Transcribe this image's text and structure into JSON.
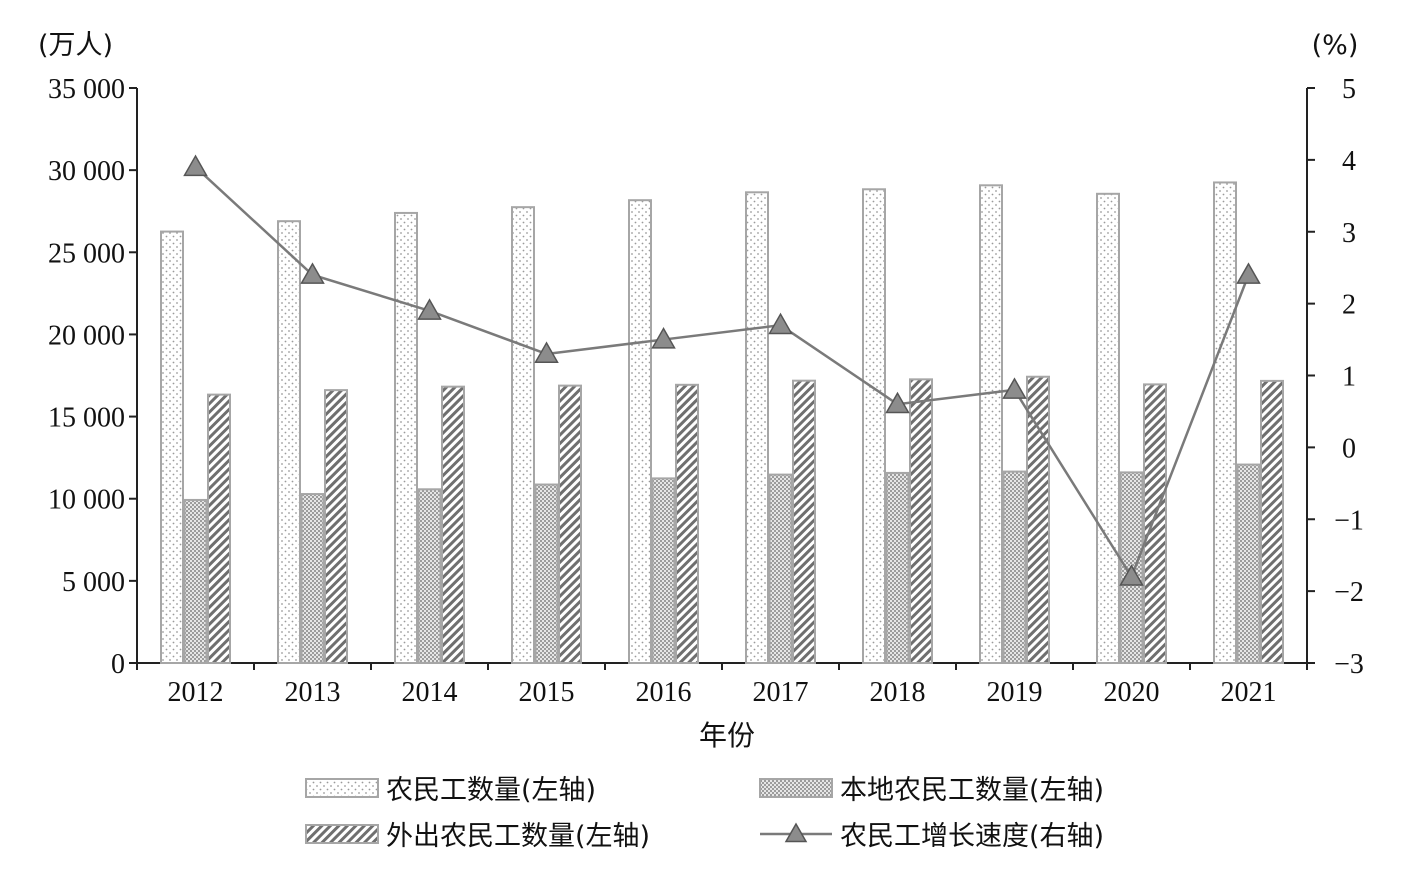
{
  "chart_data": {
    "type": "bar",
    "xlabel": "年份",
    "ylabel_left": "(万人)",
    "ylabel_right": "(%)",
    "categories": [
      "2012",
      "2013",
      "2014",
      "2015",
      "2016",
      "2017",
      "2018",
      "2019",
      "2020",
      "2021"
    ],
    "ylim_left": [
      0,
      35000
    ],
    "ylim_right": [
      -3,
      5
    ],
    "yticks_left": [
      {
        "value": 0,
        "label": "0"
      },
      {
        "value": 5000,
        "label": "5 000"
      },
      {
        "value": 10000,
        "label": "10 000"
      },
      {
        "value": 15000,
        "label": "15 000"
      },
      {
        "value": 20000,
        "label": "20 000"
      },
      {
        "value": 25000,
        "label": "25 000"
      },
      {
        "value": 30000,
        "label": "30 000"
      },
      {
        "value": 35000,
        "label": "35 000"
      }
    ],
    "yticks_right": [
      {
        "value": -3,
        "label": "−3"
      },
      {
        "value": -2,
        "label": "−2"
      },
      {
        "value": -1,
        "label": "−1"
      },
      {
        "value": 0,
        "label": "0"
      },
      {
        "value": 1,
        "label": "1"
      },
      {
        "value": 2,
        "label": "2"
      },
      {
        "value": 3,
        "label": "3"
      },
      {
        "value": 4,
        "label": "4"
      },
      {
        "value": 5,
        "label": "5"
      }
    ],
    "series": [
      {
        "name": "农民工数量(左轴)",
        "kind": "bar",
        "axis": "left",
        "pattern": "dots",
        "values": [
          26261,
          26894,
          27395,
          27747,
          28171,
          28652,
          28836,
          29077,
          28560,
          29251
        ]
      },
      {
        "name": "本地农民工数量(左轴)",
        "kind": "bar",
        "axis": "left",
        "pattern": "crosshatch",
        "values": [
          9925,
          10284,
          10574,
          10863,
          11237,
          11467,
          11570,
          11652,
          11601,
          12079
        ]
      },
      {
        "name": "外出农民工数量(左轴)",
        "kind": "bar",
        "axis": "left",
        "pattern": "diagonal",
        "values": [
          16336,
          16610,
          16821,
          16884,
          16934,
          17185,
          17266,
          17425,
          16959,
          17172
        ]
      },
      {
        "name": "农民工增长速度(右轴)",
        "kind": "line",
        "axis": "right",
        "marker": "triangle",
        "values": [
          3.9,
          2.4,
          1.9,
          1.3,
          1.5,
          1.7,
          0.6,
          0.8,
          -1.8,
          2.4
        ]
      }
    ],
    "legend": {
      "placement": "bottom",
      "columns": 2
    },
    "grid": false,
    "colors": {
      "bar_edge": "#a6a6a6",
      "line": "#7a7a7a",
      "marker": "#8c8c8c",
      "axis": "#222222"
    }
  }
}
